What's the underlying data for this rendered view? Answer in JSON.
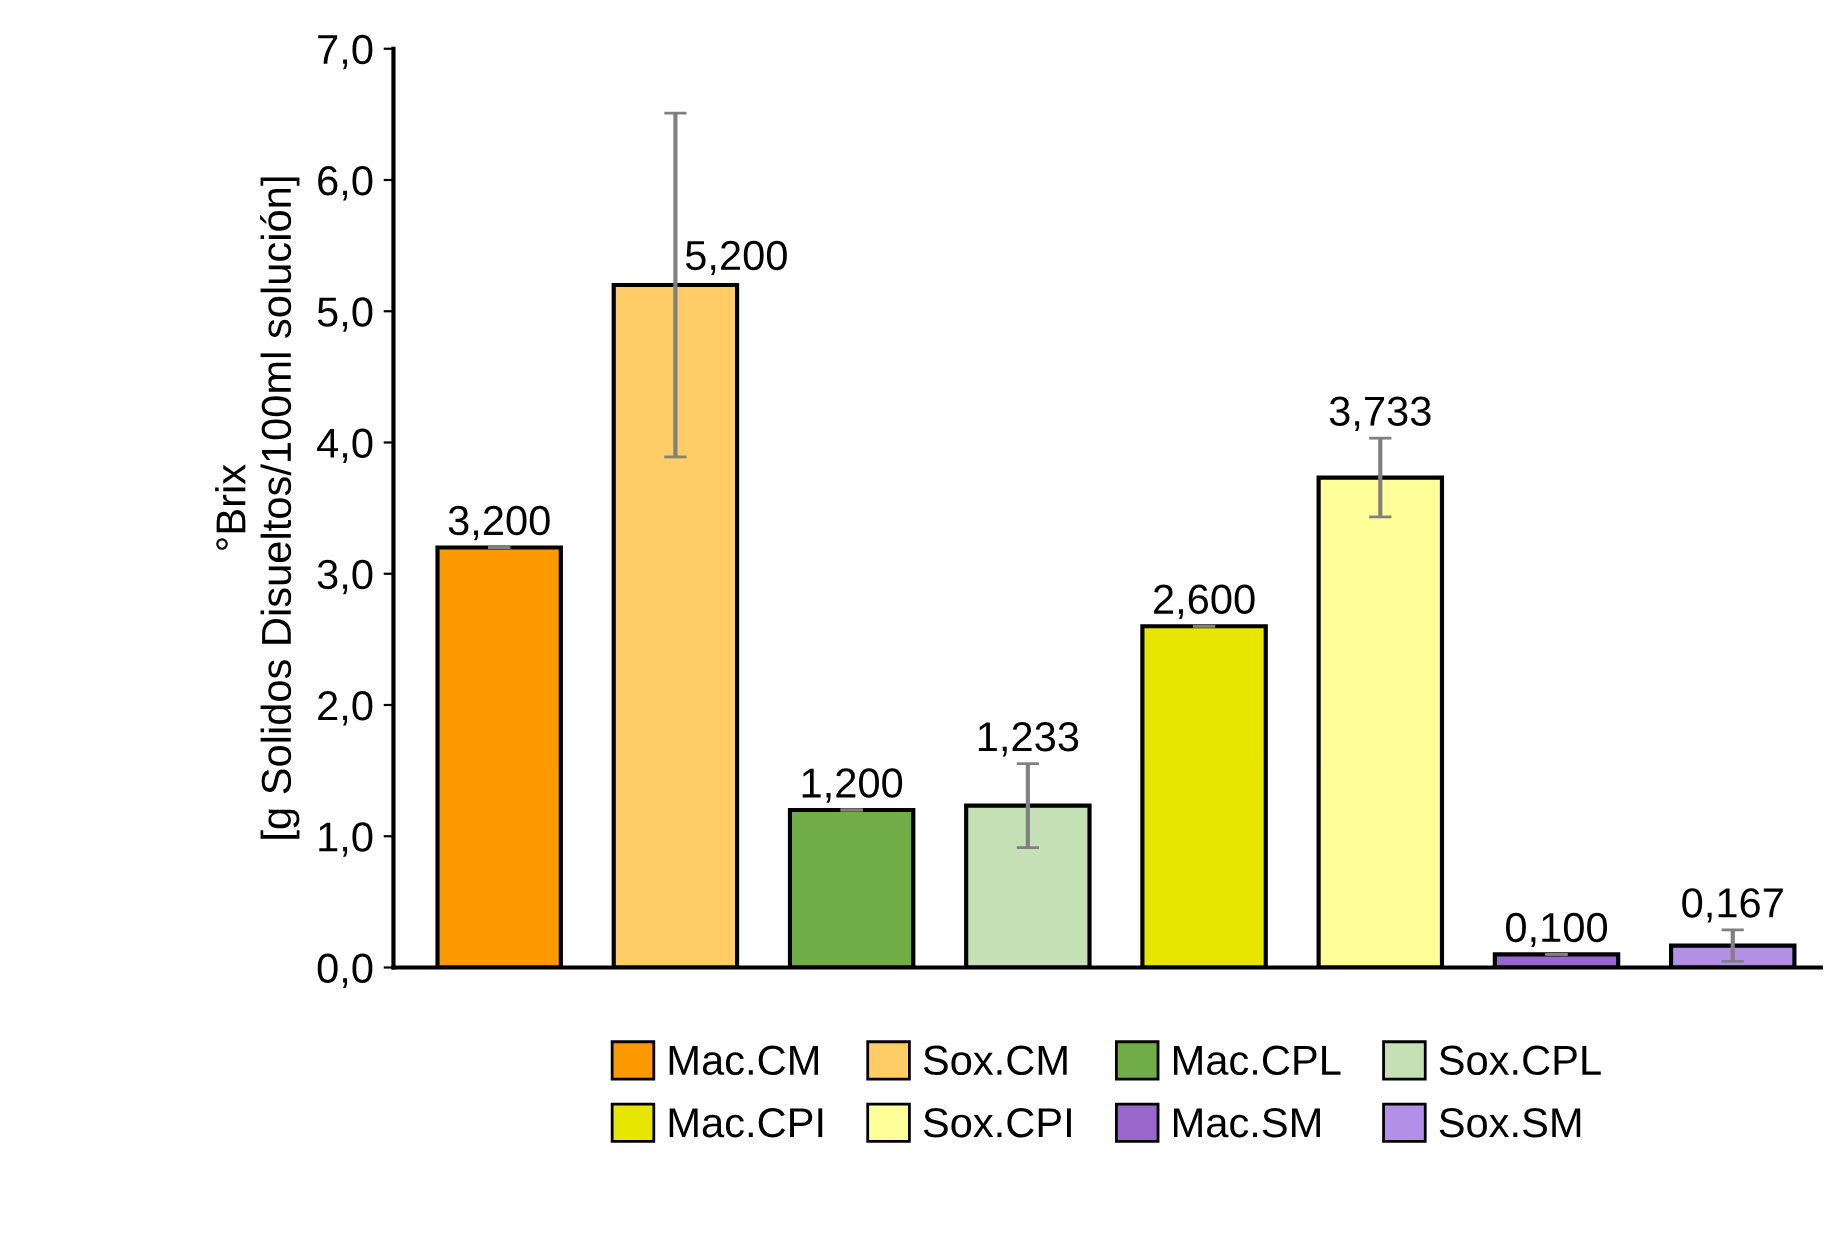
{
  "chart_data": {
    "type": "bar",
    "ylabel": "°Brix\n[g Solidos Disueltos/100ml solución]",
    "categories": [
      null,
      null,
      null,
      null,
      null,
      null,
      null,
      null
    ],
    "series": [
      {
        "name": "Mac.CM",
        "color": "#ff9900",
        "values": [
          3.2,
          null,
          null,
          null,
          null,
          null,
          null,
          null
        ],
        "errors": [
          0,
          null,
          null,
          null,
          null,
          null,
          null,
          null
        ],
        "value_labels": [
          "3,200",
          null,
          null,
          null,
          null,
          null,
          null,
          null
        ]
      },
      {
        "name": "Sox.CM",
        "color": "#ffcc66",
        "values": [
          null,
          5.2,
          null,
          null,
          null,
          null,
          null,
          null
        ],
        "errors": [
          null,
          1.31,
          null,
          null,
          null,
          null,
          null,
          null
        ],
        "value_labels": [
          null,
          "5,200",
          null,
          null,
          null,
          null,
          null,
          null
        ]
      },
      {
        "name": "Mac.CPL",
        "color": "#70ad47",
        "values": [
          null,
          null,
          1.2,
          null,
          null,
          null,
          null,
          null
        ],
        "errors": [
          null,
          null,
          0,
          null,
          null,
          null,
          null,
          null
        ],
        "value_labels": [
          null,
          null,
          "1,200",
          null,
          null,
          null,
          null,
          null
        ]
      },
      {
        "name": "Sox.CPL",
        "color": "#c5e0b4",
        "values": [
          null,
          null,
          null,
          1.233,
          null,
          null,
          null,
          null
        ],
        "errors": [
          null,
          null,
          null,
          0.32,
          null,
          null,
          null,
          null
        ],
        "value_labels": [
          null,
          null,
          null,
          "1,233",
          null,
          null,
          null,
          null
        ]
      },
      {
        "name": "Mac.CPI",
        "color": "#e6e600",
        "values": [
          null,
          null,
          null,
          null,
          2.6,
          null,
          null,
          null
        ],
        "errors": [
          null,
          null,
          null,
          null,
          0,
          null,
          null,
          null
        ],
        "value_labels": [
          null,
          null,
          null,
          null,
          "2,600",
          null,
          null,
          null
        ]
      },
      {
        "name": "Sox.CPI",
        "color": "#ffff99",
        "values": [
          null,
          null,
          null,
          null,
          null,
          3.733,
          null,
          null
        ],
        "errors": [
          null,
          null,
          null,
          null,
          null,
          0.3,
          null,
          null
        ],
        "value_labels": [
          null,
          null,
          null,
          null,
          null,
          "3,733",
          null,
          null
        ]
      },
      {
        "name": "Mac.SM",
        "color": "#9966cc",
        "values": [
          null,
          null,
          null,
          null,
          null,
          null,
          0.1,
          null
        ],
        "errors": [
          null,
          null,
          null,
          null,
          null,
          null,
          0,
          null
        ],
        "value_labels": [
          null,
          null,
          null,
          null,
          null,
          null,
          "0,100",
          null
        ]
      },
      {
        "name": "Sox.SM",
        "color": "#b38fe6",
        "values": [
          null,
          null,
          null,
          null,
          null,
          null,
          null,
          0.167
        ],
        "errors": [
          null,
          null,
          null,
          null,
          null,
          null,
          null,
          0.12
        ],
        "value_labels": [
          null,
          null,
          null,
          null,
          null,
          null,
          null,
          "0,167"
        ]
      }
    ],
    "ylim": [
      0,
      7
    ],
    "yticks": [
      {
        "value": 0,
        "label": "0,0"
      },
      {
        "value": 1,
        "label": "1,0"
      },
      {
        "value": 2,
        "label": "2,0"
      },
      {
        "value": 3,
        "label": "3,0"
      },
      {
        "value": 4,
        "label": "4,0"
      },
      {
        "value": 5,
        "label": "5,0"
      },
      {
        "value": 6,
        "label": "6,0"
      },
      {
        "value": 7,
        "label": "7,0"
      }
    ],
    "grid": false,
    "legend": "bottom"
  }
}
